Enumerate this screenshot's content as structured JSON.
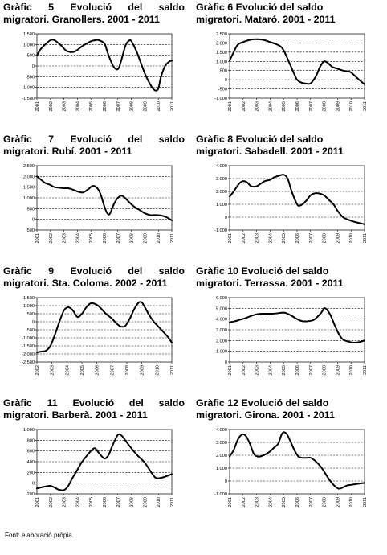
{
  "source": "Font: elaboració pròpia.",
  "chart_data": [
    {
      "type": "line",
      "title_line1": "Gràfic 5 Evolució del saldo",
      "title_line2": "migratori. Granollers. 2001 - 2011",
      "justify": true,
      "categories": [
        "2001",
        "2002",
        "2003",
        "2004",
        "2005",
        "2006",
        "2007",
        "2008",
        "2009",
        "2010",
        "2011"
      ],
      "yticks": [
        1500,
        1000,
        500,
        0,
        -500,
        -1000,
        -1500
      ],
      "ytick_labels": [
        "1.500",
        "1.000",
        "500",
        "0",
        "-500",
        "-1.000",
        "-1.500"
      ],
      "ylim": [
        -1500,
        1500
      ],
      "x": [
        0,
        0.3,
        0.7,
        1,
        1.3,
        1.8,
        2.2,
        2.7,
        3,
        3.3,
        3.7,
        4,
        4.3,
        4.6,
        5,
        5.2,
        5.4,
        5.7,
        6,
        6.2,
        6.4,
        6.6,
        6.9,
        7.1,
        7.4,
        7.7,
        8,
        8.3,
        8.6,
        8.8,
        9,
        9.2,
        9.5,
        9.8,
        10
      ],
      "values": [
        500,
        800,
        1050,
        1200,
        1200,
        950,
        700,
        650,
        750,
        900,
        1050,
        1150,
        1200,
        1200,
        1050,
        700,
        350,
        -50,
        -150,
        150,
        600,
        1000,
        1200,
        1050,
        650,
        150,
        -350,
        -750,
        -1050,
        -1150,
        -1050,
        -500,
        0,
        200,
        250
      ]
    },
    {
      "type": "line",
      "title_line1": "Gràfic 6 Evolució del saldo",
      "title_line2": "migratori. Mataró. 2001 - 2011",
      "justify": false,
      "categories": [
        "2001",
        "2002",
        "2003",
        "2004",
        "2005",
        "2006",
        "2007",
        "2008",
        "2009",
        "2010",
        "2011"
      ],
      "yticks": [
        2500,
        2000,
        1500,
        1000,
        500,
        0,
        -500,
        -1000
      ],
      "ytick_labels": [
        "2.500",
        "2.000",
        "1.500",
        "1.000",
        "500",
        "0",
        "-500",
        "-1.000"
      ],
      "ylim": [
        -1000,
        2500
      ],
      "x": [
        0,
        0.3,
        0.6,
        1,
        1.4,
        1.8,
        2.2,
        2.6,
        3,
        3.4,
        3.8,
        4,
        4.2,
        4.5,
        4.8,
        5,
        5.3,
        5.6,
        6,
        6.4,
        6.7,
        7,
        7.3,
        7.6,
        8,
        8.4,
        8.8,
        9,
        9.3,
        9.6,
        10
      ],
      "values": [
        1050,
        1500,
        1900,
        2050,
        2150,
        2200,
        2200,
        2150,
        2050,
        1950,
        1800,
        1600,
        1300,
        800,
        300,
        0,
        -150,
        -200,
        -200,
        200,
        700,
        1000,
        900,
        700,
        600,
        500,
        450,
        400,
        200,
        0,
        -250
      ]
    },
    {
      "type": "line",
      "title_line1": "Gràfic 7 Evolució del saldo",
      "title_line2": "migratori. Rubí. 2001 - 2011",
      "justify": true,
      "categories": [
        "2001",
        "2002",
        "2003",
        "2004",
        "2005",
        "2006",
        "2007",
        "2008",
        "2009",
        "2010",
        "2011"
      ],
      "yticks": [
        2500,
        2000,
        1500,
        1000,
        500,
        0,
        -500
      ],
      "ytick_labels": [
        "2.500",
        "2.000",
        "1.500",
        "1.000",
        "500",
        "0",
        "-500"
      ],
      "ylim": [
        -500,
        2500
      ],
      "x": [
        0,
        0.3,
        0.6,
        1,
        1.3,
        1.6,
        2,
        2.3,
        2.6,
        3,
        3.4,
        3.8,
        4.1,
        4.4,
        4.7,
        5,
        5.2,
        5.4,
        5.7,
        6,
        6.3,
        6.6,
        7,
        7.3,
        7.7,
        8,
        8.4,
        8.8,
        9.2,
        9.6,
        10
      ],
      "values": [
        2000,
        1850,
        1700,
        1600,
        1500,
        1480,
        1450,
        1450,
        1400,
        1300,
        1250,
        1400,
        1550,
        1500,
        1200,
        600,
        300,
        250,
        700,
        1000,
        1100,
        950,
        700,
        550,
        400,
        280,
        200,
        200,
        180,
        100,
        -50
      ]
    },
    {
      "type": "line",
      "title_line1": "Gràfic 8 Evolució del saldo",
      "title_line2": "migratori. Sabadell. 2001 - 2011",
      "justify": false,
      "categories": [
        "2001",
        "2002",
        "2003",
        "2004",
        "2005",
        "2006",
        "2007",
        "2008",
        "2009",
        "2010",
        "2011"
      ],
      "yticks": [
        4000,
        3000,
        2000,
        1000,
        0,
        -1000
      ],
      "ytick_labels": [
        "4.000",
        "3.000",
        "2.000",
        "1.000",
        "0",
        "-1.000"
      ],
      "ylim": [
        -1000,
        4000
      ],
      "x": [
        0,
        0.3,
        0.7,
        1,
        1.3,
        1.6,
        2,
        2.3,
        2.6,
        3,
        3.3,
        3.6,
        4,
        4.3,
        4.6,
        5,
        5.2,
        5.4,
        5.7,
        6,
        6.3,
        6.6,
        7,
        7.3,
        7.7,
        8,
        8.4,
        8.8,
        9.2,
        9.6,
        10
      ],
      "values": [
        1600,
        2000,
        2600,
        2800,
        2700,
        2400,
        2400,
        2600,
        2800,
        2900,
        3100,
        3200,
        3300,
        3000,
        2000,
        1000,
        900,
        1000,
        1300,
        1700,
        1850,
        1850,
        1700,
        1400,
        1000,
        500,
        0,
        -200,
        -350,
        -450,
        -550
      ]
    },
    {
      "type": "line",
      "title_line1": "Gràfic 9 Evolució del saldo",
      "title_line2": "migratori. Sta. Coloma. 2002 - 2011",
      "justify": true,
      "categories": [
        "2002",
        "2003",
        "2004",
        "2005",
        "2006",
        "2007",
        "2008",
        "2009",
        "2010",
        "2011"
      ],
      "yticks": [
        1500,
        1000,
        500,
        0,
        -500,
        -1000,
        -1500,
        -2000,
        -2500
      ],
      "ytick_labels": [
        "1.500",
        "1.000",
        "500",
        "0",
        "-500",
        "-1.000",
        "-1.500",
        "-2.000",
        "-2.500"
      ],
      "ylim": [
        -2500,
        1500
      ],
      "x": [
        0,
        0.3,
        0.6,
        0.9,
        1.2,
        1.5,
        1.8,
        2.1,
        2.4,
        2.7,
        3,
        3.3,
        3.6,
        4,
        4.3,
        4.6,
        5,
        5.3,
        5.6,
        5.9,
        6.2,
        6.5,
        6.8,
        7,
        7.2,
        7.5,
        7.8,
        8.1,
        8.4,
        8.7,
        9
      ],
      "values": [
        -1900,
        -1850,
        -1800,
        -1500,
        -800,
        0,
        700,
        900,
        700,
        300,
        500,
        900,
        1150,
        1050,
        800,
        500,
        200,
        -100,
        -300,
        -250,
        200,
        800,
        1200,
        1200,
        900,
        400,
        0,
        -300,
        -600,
        -900,
        -1300
      ]
    },
    {
      "type": "line",
      "title_line1": "Gràfic 10 Evolució del saldo",
      "title_line2": "migratori. Terrassa. 2001 - 2011",
      "justify": false,
      "categories": [
        "2001",
        "2002",
        "2003",
        "2004",
        "2005",
        "2006",
        "2007",
        "2008",
        "2009",
        "2010",
        "2011"
      ],
      "yticks": [
        6000,
        5000,
        4000,
        3000,
        2000,
        1000,
        0
      ],
      "ytick_labels": [
        "6.000",
        "5.000",
        "4.000",
        "3.000",
        "2.000",
        "1.000",
        "0"
      ],
      "ylim": [
        0,
        6000
      ],
      "x": [
        0,
        0.4,
        0.8,
        1.2,
        1.6,
        2,
        2.4,
        2.8,
        3.2,
        3.6,
        4,
        4.3,
        4.6,
        5,
        5.4,
        5.8,
        6.2,
        6.5,
        6.8,
        7,
        7.2,
        7.5,
        7.8,
        8.1,
        8.4,
        8.8,
        9.2,
        9.6,
        10
      ],
      "values": [
        3700,
        3800,
        3950,
        4100,
        4300,
        4450,
        4500,
        4500,
        4500,
        4550,
        4600,
        4500,
        4300,
        4000,
        3800,
        3800,
        3900,
        4200,
        4600,
        5000,
        4900,
        4300,
        3400,
        2600,
        2100,
        1900,
        1800,
        1850,
        2000
      ]
    },
    {
      "type": "line",
      "title_line1": "Gràfic 11 Evolució del saldo",
      "title_line2": "migratori. Barberà. 2001 - 2011",
      "justify": true,
      "categories": [
        "2001",
        "2002",
        "2003",
        "2004",
        "2005",
        "2006",
        "2007",
        "2008",
        "2009",
        "2010",
        "2011"
      ],
      "yticks": [
        1000,
        800,
        600,
        400,
        200,
        0,
        -200
      ],
      "ytick_labels": [
        "1.000",
        "800",
        "600",
        "400",
        "200",
        "0",
        "-200"
      ],
      "ylim": [
        -200,
        1000
      ],
      "x": [
        0,
        0.3,
        0.7,
        1,
        1.3,
        1.6,
        2,
        2.3,
        2.6,
        3,
        3.3,
        3.6,
        4,
        4.3,
        4.6,
        5,
        5.3,
        5.6,
        6,
        6.3,
        6.6,
        7,
        7.3,
        7.6,
        8,
        8.4,
        8.8,
        9.2,
        9.6,
        10
      ],
      "values": [
        -100,
        -80,
        -60,
        -50,
        -80,
        -120,
        -130,
        -60,
        80,
        250,
        380,
        480,
        600,
        650,
        560,
        460,
        520,
        700,
        900,
        880,
        780,
        650,
        560,
        480,
        380,
        230,
        100,
        100,
        130,
        170
      ]
    },
    {
      "type": "line",
      "title_line1": "Gràfic 12 Evolució del saldo",
      "title_line2": "migratori. Girona. 2001 - 2011",
      "justify": false,
      "categories": [
        "2001",
        "2002",
        "2003",
        "2004",
        "2005",
        "2006",
        "2007",
        "2008",
        "2009",
        "2010",
        "2011"
      ],
      "yticks": [
        4000,
        3000,
        2000,
        1000,
        0,
        -1000
      ],
      "ytick_labels": [
        "4.000",
        "3.000",
        "2.000",
        "1.000",
        "0",
        "-1.000"
      ],
      "ylim": [
        -1000,
        4000
      ],
      "x": [
        0,
        0.3,
        0.6,
        0.9,
        1.2,
        1.5,
        1.8,
        2.1,
        2.4,
        2.7,
        3,
        3.3,
        3.6,
        3.9,
        4.2,
        4.5,
        4.8,
        5.1,
        5.4,
        5.7,
        6,
        6.3,
        6.6,
        6.9,
        7.2,
        7.5,
        7.8,
        8.1,
        8.4,
        8.7,
        9,
        9.3,
        9.6,
        10
      ],
      "values": [
        1900,
        2400,
        3200,
        3600,
        3500,
        2900,
        2100,
        1900,
        1950,
        2100,
        2300,
        2600,
        2900,
        3700,
        3700,
        3100,
        2400,
        1900,
        1800,
        1800,
        1800,
        1600,
        1300,
        900,
        400,
        -50,
        -400,
        -600,
        -500,
        -350,
        -300,
        -250,
        -200,
        -150
      ]
    }
  ]
}
